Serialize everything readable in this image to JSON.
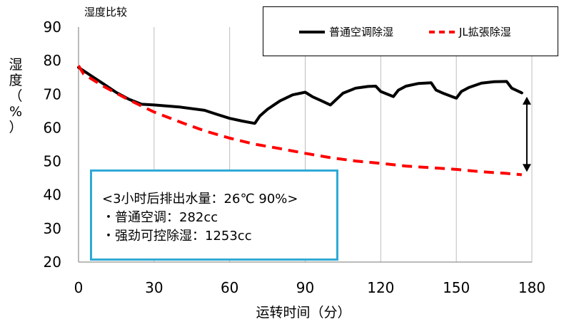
{
  "chart_data": {
    "type": "line",
    "title": "湿度比较",
    "xlabel": "运转时间（分）",
    "ylabel": "湿度（%）",
    "xlim": [
      0,
      180
    ],
    "ylim": [
      20,
      90
    ],
    "x_ticks": [
      "0",
      "30",
      "60",
      "90",
      "120",
      "150",
      "180"
    ],
    "y_ticks": [
      "20",
      "30",
      "40",
      "50",
      "60",
      "70",
      "80",
      "90"
    ],
    "grid": "vertical",
    "legend_position": "top-right",
    "series": [
      {
        "name": "普通空调除湿",
        "color": "#000000",
        "style": "solid",
        "x": [
          0,
          5,
          10,
          15,
          20,
          25,
          30,
          40,
          50,
          55,
          60,
          65,
          70,
          72,
          75,
          80,
          85,
          90,
          93,
          96,
          100,
          102,
          105,
          110,
          115,
          118,
          120,
          125,
          127,
          130,
          135,
          140,
          142,
          145,
          150,
          152,
          155,
          160,
          165,
          170,
          172,
          176
        ],
        "y": [
          78,
          75.5,
          73,
          70.5,
          68.5,
          67,
          66.8,
          66.2,
          65.2,
          64,
          62.8,
          62,
          61.3,
          63.5,
          65.5,
          68,
          69.8,
          70.6,
          69.2,
          68.2,
          66.8,
          68.2,
          70.3,
          71.8,
          72.3,
          72.4,
          70.8,
          69.3,
          71.2,
          72.4,
          73.2,
          73.4,
          71.2,
          70.2,
          68.8,
          70.8,
          72,
          73.3,
          73.7,
          73.8,
          71.8,
          70.4
        ]
      },
      {
        "name": "JL拡張除湿",
        "color": "#ff0000",
        "style": "dashed",
        "x": [
          0,
          2,
          10,
          20,
          30,
          40,
          50,
          60,
          70,
          80,
          90,
          100,
          110,
          120,
          130,
          140,
          150,
          160,
          170,
          176
        ],
        "y": [
          78.5,
          76,
          72.3,
          68.3,
          64.7,
          61.8,
          59.1,
          56.9,
          55.1,
          53.8,
          52.4,
          51.1,
          50.1,
          49.4,
          48.6,
          48.1,
          47.6,
          46.9,
          46.4,
          46
        ]
      }
    ],
    "annotations": {
      "difference_arrow": {
        "x": 178,
        "y_from": 70.5,
        "y_to": 46
      },
      "box_lines": [
        "<3小时后排出水量：26℃ 90%>",
        "・普通空调：282cc",
        "・强劲可控除湿：1253cc"
      ],
      "box_border_color": "#2fa9d6"
    }
  },
  "labels": {
    "title": "湿度比较",
    "ylabel_chars": [
      "湿",
      "度",
      "（",
      "%",
      "）"
    ],
    "xlabel": "运转时间（分）"
  }
}
